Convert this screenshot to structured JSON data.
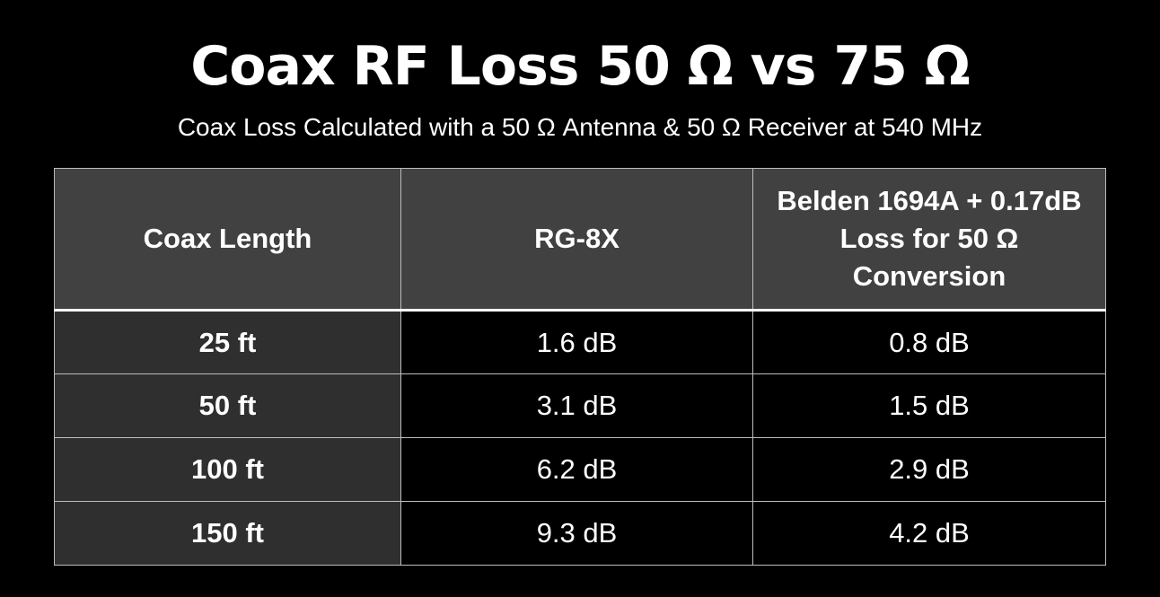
{
  "title": "Coax RF Loss 50 Ω vs 75 Ω",
  "subtitle": "Coax Loss Calculated with a 50 Ω Antenna & 50 Ω Receiver at 540 MHz",
  "table": {
    "headers": [
      "Coax Length",
      "RG-8X",
      "Belden 1694A + 0.17dB Loss for 50 Ω Conversion"
    ],
    "rows": [
      [
        "25 ft",
        "1.6 dB",
        "0.8 dB"
      ],
      [
        "50 ft",
        "3.1 dB",
        "1.5 dB"
      ],
      [
        "100 ft",
        "6.2 dB",
        "2.9 dB"
      ],
      [
        "150 ft",
        "9.3 dB",
        "4.2 dB"
      ]
    ]
  },
  "colors": {
    "background": "#000000",
    "header_background": "#414141",
    "first_column_background": "#2f2f2f",
    "grid_lines": "#bdbdbd",
    "text": "#ffffff"
  }
}
